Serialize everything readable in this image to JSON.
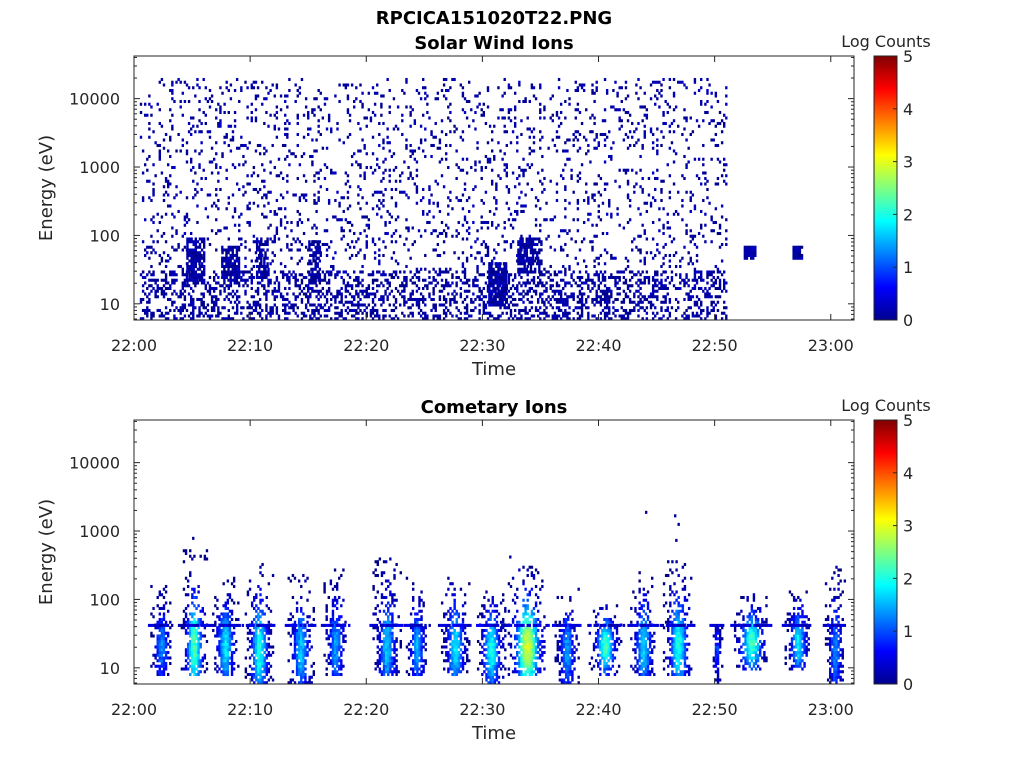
{
  "figure": {
    "filename": "RPCICA151020T22.PNG"
  },
  "chart_data": [
    {
      "type": "heatmap",
      "title": "Solar Wind Ions",
      "xlabel": "Time",
      "ylabel": "Energy (eV)",
      "x_ticks": [
        "22:00",
        "22:10",
        "22:20",
        "22:30",
        "22:40",
        "22:50",
        "23:00"
      ],
      "x_range_minutes": [
        0,
        62
      ],
      "y_scale": "log",
      "y_ticks": [
        "10",
        "100",
        "1000",
        "10000"
      ],
      "y_range": [
        5.8,
        42000
      ],
      "colorbar": {
        "label": "Log Counts",
        "ticks": [
          "0",
          "1",
          "2",
          "3",
          "4",
          "5"
        ],
        "range": [
          0,
          5
        ],
        "colormap": "jet"
      },
      "description_of_data": "sparse single-count (log≈0) pixels up to ~22:51, low-energy patches near 10-60 eV; isolated patches at ~22:53 and ~22:57 near 50-60 eV",
      "clusters": [
        {
          "t_min": 0.5,
          "t_max": 51,
          "e_min": 30,
          "e_max": 20000,
          "level": 0,
          "density": 0.1
        },
        {
          "t_min": 0.5,
          "t_max": 51,
          "e_min": 6,
          "e_max": 30,
          "level": 0,
          "density": 0.35
        },
        {
          "t_min": 4.5,
          "t_max": 6,
          "e_min": 20,
          "e_max": 90,
          "level": 0,
          "density": 0.75
        },
        {
          "t_min": 7.5,
          "t_max": 9,
          "e_min": 20,
          "e_max": 70,
          "level": 0,
          "density": 0.7
        },
        {
          "t_min": 10.5,
          "t_max": 11.5,
          "e_min": 25,
          "e_max": 90,
          "level": 0,
          "density": 0.6
        },
        {
          "t_min": 15,
          "t_max": 16,
          "e_min": 20,
          "e_max": 80,
          "level": 0,
          "density": 0.6
        },
        {
          "t_min": 30.5,
          "t_max": 32,
          "e_min": 10,
          "e_max": 40,
          "level": 0,
          "density": 0.8
        },
        {
          "t_min": 33,
          "t_max": 35,
          "e_min": 30,
          "e_max": 90,
          "level": 0,
          "density": 0.7
        },
        {
          "t_min": 52.5,
          "t_max": 53.5,
          "e_min": 45,
          "e_max": 65,
          "level": 0,
          "density": 0.9
        },
        {
          "t_min": 56.7,
          "t_max": 57.5,
          "e_min": 45,
          "e_max": 70,
          "level": 0,
          "density": 0.9
        }
      ]
    },
    {
      "type": "heatmap",
      "title": "Cometary Ions",
      "xlabel": "Time",
      "ylabel": "Energy (eV)",
      "x_ticks": [
        "22:00",
        "22:10",
        "22:20",
        "22:30",
        "22:40",
        "22:50",
        "23:00"
      ],
      "x_range_minutes": [
        0,
        62
      ],
      "y_scale": "log",
      "y_ticks": [
        "10",
        "100",
        "1000",
        "10000"
      ],
      "y_range": [
        5.8,
        42000
      ],
      "colorbar": {
        "label": "Log Counts",
        "ticks": [
          "0",
          "1",
          "2",
          "3",
          "4",
          "5"
        ],
        "range": [
          0,
          5
        ],
        "colormap": "jet"
      },
      "description_of_data": "periodic vertical ion bursts roughly every 2.7 min from 22:02 to 23:01, energies 6-400 eV, peak log counts ~3",
      "bursts": [
        {
          "t": 2.3,
          "w": 1.0,
          "e_lo": 8,
          "e_hi": 150,
          "peak": 1.3
        },
        {
          "t": 5.1,
          "w": 1.2,
          "e_lo": 8,
          "e_hi": 500,
          "peak": 2.3
        },
        {
          "t": 7.8,
          "w": 1.2,
          "e_lo": 8,
          "e_hi": 200,
          "peak": 1.8
        },
        {
          "t": 10.7,
          "w": 1.3,
          "e_lo": 6,
          "e_hi": 350,
          "peak": 2.0
        },
        {
          "t": 14.3,
          "w": 1.2,
          "e_lo": 6,
          "e_hi": 250,
          "peak": 1.6
        },
        {
          "t": 17.3,
          "w": 1.1,
          "e_lo": 8,
          "e_hi": 300,
          "peak": 1.4
        },
        {
          "t": 21.7,
          "w": 1.3,
          "e_lo": 8,
          "e_hi": 420,
          "peak": 1.6
        },
        {
          "t": 24.3,
          "w": 1.0,
          "e_lo": 8,
          "e_hi": 200,
          "peak": 1.5
        },
        {
          "t": 27.6,
          "w": 1.3,
          "e_lo": 8,
          "e_hi": 300,
          "peak": 1.8
        },
        {
          "t": 30.7,
          "w": 1.3,
          "e_lo": 6,
          "e_hi": 150,
          "peak": 2.0
        },
        {
          "t": 33.8,
          "w": 1.8,
          "e_lo": 8,
          "e_hi": 300,
          "peak": 3.0
        },
        {
          "t": 37.2,
          "w": 1.1,
          "e_lo": 6,
          "e_hi": 150,
          "peak": 1.4
        },
        {
          "t": 40.5,
          "w": 1.5,
          "e_lo": 8,
          "e_hi": 80,
          "peak": 2.2
        },
        {
          "t": 43.8,
          "w": 1.2,
          "e_lo": 8,
          "e_hi": 300,
          "peak": 1.7
        },
        {
          "t": 46.8,
          "w": 1.4,
          "e_lo": 8,
          "e_hi": 350,
          "peak": 2.0
        },
        {
          "t": 50.1,
          "w": 0.5,
          "e_lo": 6,
          "e_hi": 40,
          "peak": 1.0
        },
        {
          "t": 53.1,
          "w": 1.6,
          "e_lo": 10,
          "e_hi": 120,
          "peak": 2.2
        },
        {
          "t": 57.1,
          "w": 1.2,
          "e_lo": 10,
          "e_hi": 130,
          "peak": 1.8
        },
        {
          "t": 60.3,
          "w": 0.9,
          "e_lo": 6,
          "e_hi": 300,
          "peak": 1.3
        }
      ],
      "band_energy_eV": 40,
      "outliers": [
        {
          "t": 44.0,
          "e": 1800
        },
        {
          "t": 46.5,
          "e": 1600
        },
        {
          "t": 46.8,
          "e": 1200
        },
        {
          "t": 46.6,
          "e": 700
        },
        {
          "t": 5.0,
          "e": 750
        },
        {
          "t": 32.3,
          "e": 400
        }
      ]
    }
  ]
}
